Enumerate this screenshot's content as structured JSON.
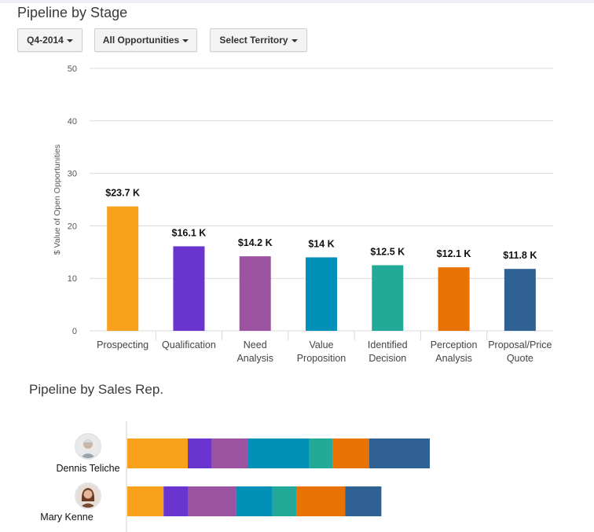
{
  "titles": {
    "stage": "Pipeline by Stage",
    "rep": "Pipeline by Sales Rep."
  },
  "filters": {
    "quarter": "Q4-2014",
    "opportunities": "All Opportunities",
    "territory": "Select Territory"
  },
  "chart_data": [
    {
      "type": "bar",
      "title": "Pipeline by Stage",
      "ylabel": "$ Value of Open Opportunities",
      "xlabel": "",
      "ylim": [
        0,
        50
      ],
      "yticks": [
        "0",
        "10",
        "20",
        "30",
        "40",
        "50"
      ],
      "categories": [
        [
          "Prospecting"
        ],
        [
          "Qualification"
        ],
        [
          "Need",
          "Analysis"
        ],
        [
          "Value",
          "Proposition"
        ],
        [
          "Identified",
          "Decision"
        ],
        [
          "Perception",
          "Analysis"
        ],
        [
          "Proposal/Price",
          "Quote"
        ]
      ],
      "values": [
        23.7,
        16.1,
        14.2,
        14.0,
        12.5,
        12.1,
        11.8
      ],
      "labels": [
        "$23.7 K",
        "$16.1 K",
        "$14.2 K",
        "$14 K",
        "$12.5 K",
        "$12.1 K",
        "$11.8 K"
      ],
      "colors": [
        "#f9a11b",
        "#6a35cf",
        "#9c53a2",
        "#0090b8",
        "#22a997",
        "#e87204",
        "#2f6194"
      ],
      "grid": true
    },
    {
      "type": "bar",
      "orientation": "horizontal-stacked",
      "title": "Pipeline by Sales Rep.",
      "stack_order": [
        "Prospecting",
        "Qualification",
        "Need Analysis",
        "Value Proposition",
        "Identified Decision",
        "Perception Analysis",
        "Proposal/Price Quote"
      ],
      "reps": [
        {
          "name": "Dennis Teliche",
          "values": [
            10,
            4,
            6,
            10,
            4,
            6,
            10
          ]
        },
        {
          "name": "Mary Kenne",
          "values": [
            6,
            4,
            8,
            6,
            4,
            8,
            6
          ]
        }
      ]
    }
  ]
}
